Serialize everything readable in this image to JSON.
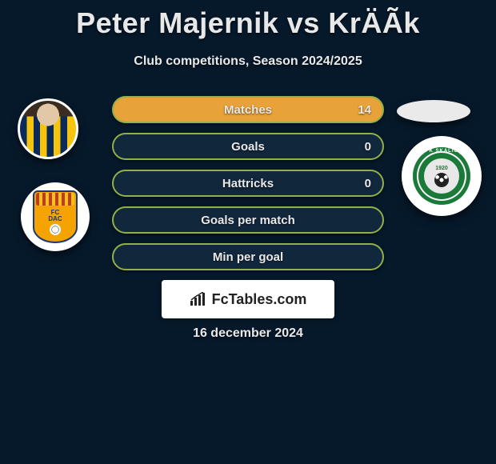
{
  "title": "Peter Majernik vs KrÄÃ­k",
  "subtitle": "Club competitions, Season 2024/2025",
  "date": "16 december 2024",
  "brand": {
    "text": "FcTables.com"
  },
  "colors": {
    "background": "#06192b",
    "text": "#e8e8e8",
    "stat_border": "#8fb04a",
    "stat_fill_dark": "#11273c",
    "stat_fill_light": "#e8a23a",
    "white": "#ffffff",
    "brand_text": "#222222"
  },
  "left": {
    "club_name": "FC DAC",
    "club_text_line1": "FC",
    "club_text_line2": "DAC"
  },
  "right": {
    "club_name": "MFK SKALICA",
    "club_arc": "MFK SKALICA",
    "club_year": "1920"
  },
  "stats": [
    {
      "label": "Matches",
      "right_value": "14",
      "fill_left_pct": 0,
      "fill_right_pct": 100,
      "fill_color": "#e8a23a",
      "show_right_value": true
    },
    {
      "label": "Goals",
      "right_value": "0",
      "fill_left_pct": 0,
      "fill_right_pct": 0,
      "fill_color": "#11273c",
      "show_right_value": true
    },
    {
      "label": "Hattricks",
      "right_value": "0",
      "fill_left_pct": 0,
      "fill_right_pct": 0,
      "fill_color": "#11273c",
      "show_right_value": true
    },
    {
      "label": "Goals per match",
      "right_value": "",
      "fill_left_pct": 0,
      "fill_right_pct": 0,
      "fill_color": "#11273c",
      "show_right_value": false
    },
    {
      "label": "Min per goal",
      "right_value": "",
      "fill_left_pct": 0,
      "fill_right_pct": 0,
      "fill_color": "#11273c",
      "show_right_value": false
    }
  ],
  "style": {
    "title_fontsize": 36,
    "subtitle_fontsize": 16,
    "stat_fontsize": 15,
    "stat_row_height": 34,
    "stat_row_gap": 12,
    "stat_border_width": 2,
    "stat_border_radius": 17
  }
}
